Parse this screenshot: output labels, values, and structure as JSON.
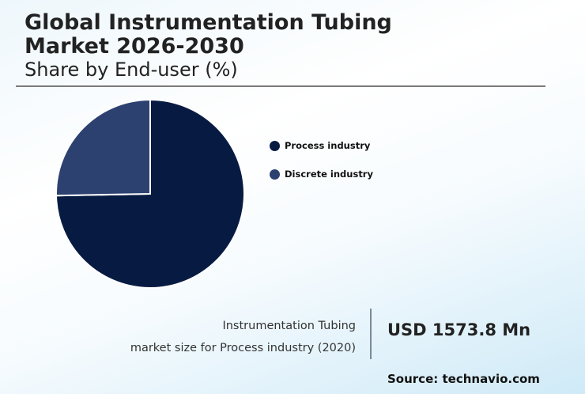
{
  "header": {
    "title_line1": "Global Instrumentation Tubing",
    "title_line2": "Market 2026-2030",
    "subtitle": "Share by End-user (%)"
  },
  "legend": [
    {
      "label": "Process industry",
      "color": "#071b42"
    },
    {
      "label": "Discrete industry",
      "color": "#2c4170"
    }
  ],
  "highlight": {
    "caption_line1": "Instrumentation Tubing",
    "caption_line2": "market size for Process industry (2020)",
    "value": "USD 1573.8 Mn"
  },
  "source": "Source: technavio.com",
  "chart_data": {
    "type": "pie",
    "title": "Global Instrumentation Tubing Market 2026-2030",
    "subtitle": "Share by End-user (%)",
    "categories": [
      "Process industry",
      "Discrete industry"
    ],
    "values": [
      74.7,
      25.3
    ],
    "colors": [
      "#071b42",
      "#2c4170"
    ],
    "legend_position": "right",
    "annotation": "Instrumentation Tubing market size for Process industry (2020): USD 1573.8 Mn"
  }
}
